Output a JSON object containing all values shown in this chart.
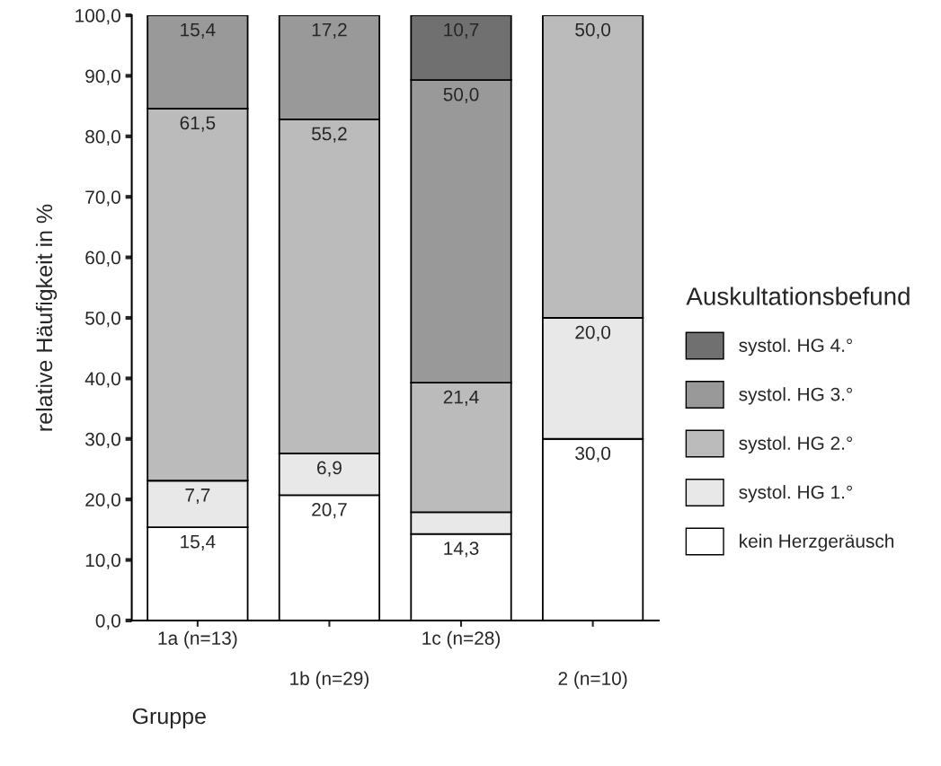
{
  "chart_data": {
    "type": "bar",
    "stacked": true,
    "xlabel": "Gruppe",
    "ylabel": "relative Häufigkeit in %",
    "legend_title": "Auskultationsbefund",
    "legend": "right",
    "grid": false,
    "categories": [
      "1a (n=13)",
      "1b (n=29)",
      "1c (n=28)",
      "2 (n=10)"
    ],
    "ylim": [
      0,
      100
    ],
    "yticks": [
      {
        "value": 0,
        "label": "0,0"
      },
      {
        "value": 10,
        "label": "10,0"
      },
      {
        "value": 20,
        "label": "20,0"
      },
      {
        "value": 30,
        "label": "30,0"
      },
      {
        "value": 40,
        "label": "40,0"
      },
      {
        "value": 50,
        "label": "50,0"
      },
      {
        "value": 60,
        "label": "60,0"
      },
      {
        "value": 70,
        "label": "70,0"
      },
      {
        "value": 80,
        "label": "80,0"
      },
      {
        "value": 90,
        "label": "90,0"
      },
      {
        "value": 100,
        "label": "100,0"
      }
    ],
    "series": [
      {
        "name": "kein Herzgeräusch",
        "color": "#ffffff",
        "values": [
          15.4,
          20.7,
          14.3,
          30.0
        ],
        "value_labels": [
          "15,4",
          "20,7",
          "14,3",
          "30,0"
        ]
      },
      {
        "name": "systol. HG 1.°",
        "color": "#e8e8e8",
        "values": [
          7.7,
          6.9,
          3.6,
          20.0
        ],
        "value_labels": [
          "7,7",
          "6,9",
          null,
          "20,0"
        ]
      },
      {
        "name": "systol. HG 2.°",
        "color": "#bbbbbb",
        "values": [
          61.5,
          55.2,
          21.4,
          50.0
        ],
        "value_labels": [
          "61,5",
          "55,2",
          "21,4",
          "50,0"
        ]
      },
      {
        "name": "systol. HG 3.°",
        "color": "#999999",
        "values": [
          15.4,
          17.2,
          50.0,
          null
        ],
        "value_labels": [
          "15,4",
          "17,2",
          "50,0",
          null
        ]
      },
      {
        "name": "systol. HG 4.°",
        "color": "#707070",
        "values": [
          null,
          null,
          10.7,
          null
        ],
        "value_labels": [
          null,
          null,
          "10,7",
          null
        ]
      }
    ]
  }
}
